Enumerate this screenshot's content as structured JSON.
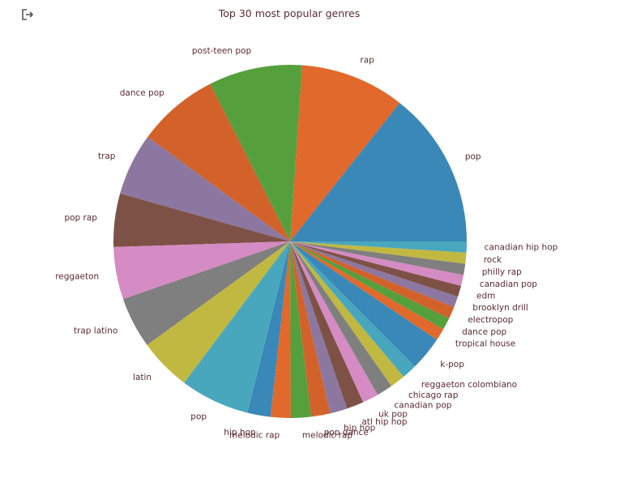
{
  "toolbar": {
    "export_icon": "export-icon"
  },
  "colors": {
    "palette": [
      "#3a88b7",
      "#e0692b",
      "#55a03d",
      "#d2622a",
      "#8c77a0",
      "#7d5145",
      "#d58bc3",
      "#7f7f7f",
      "#c1b841",
      "#49a7bd"
    ],
    "label": "#5b2b33"
  },
  "chart_data": {
    "type": "pie",
    "title": "Top 30 most popular genres",
    "start_angle_deg": 0,
    "direction": "counterclockwise",
    "slices": [
      {
        "label": "pop",
        "value": 15.6
      },
      {
        "label": "rap",
        "value": 10.4
      },
      {
        "label": "post-teen pop",
        "value": 9.3
      },
      {
        "label": "dance pop",
        "value": 8.1
      },
      {
        "label": "trap",
        "value": 6.2
      },
      {
        "label": "pop rap",
        "value": 5.3
      },
      {
        "label": "reggaeton",
        "value": 5.2
      },
      {
        "label": "trap latino",
        "value": 5.1
      },
      {
        "label": "latin",
        "value": 5.2
      },
      {
        "label": "pop",
        "value": 6.9
      },
      {
        "label": "hip hop",
        "value": 2.3
      },
      {
        "label": "melodic rap",
        "value": 2.0
      },
      {
        "label": "melodic rap",
        "value": 2.0
      },
      {
        "label": "pop dance",
        "value": 1.9
      },
      {
        "label": "hip hop",
        "value": 1.7
      },
      {
        "label": "atl hip hop",
        "value": 1.7
      },
      {
        "label": "uk pop",
        "value": 1.6
      },
      {
        "label": "canadian pop",
        "value": 1.6
      },
      {
        "label": "chicago rap",
        "value": 1.5
      },
      {
        "label": "reggaeton colombiano",
        "value": 1.5
      },
      {
        "label": "k-pop",
        "value": 3.4
      },
      {
        "label": "tropical house",
        "value": 1.2
      },
      {
        "label": "dance pop",
        "value": 1.2
      },
      {
        "label": "electropop",
        "value": 1.2
      },
      {
        "label": "brooklyn drill",
        "value": 1.1
      },
      {
        "label": "edm",
        "value": 1.1
      },
      {
        "label": "canadian pop",
        "value": 1.1
      },
      {
        "label": "philly rap",
        "value": 1.1
      },
      {
        "label": "rock",
        "value": 1.1
      },
      {
        "label": "canadian hip hop",
        "value": 1.1
      }
    ]
  }
}
